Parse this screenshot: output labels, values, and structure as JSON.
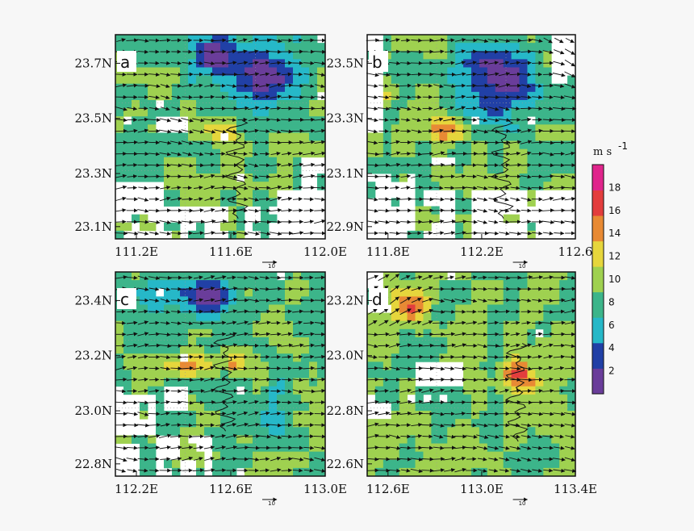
{
  "chart_data": {
    "type": "heatmap",
    "colorbar": {
      "unit": "m s",
      "unit_superscript": "-1",
      "ticks": [
        "2",
        "4",
        "6",
        "8",
        "10",
        "12",
        "14",
        "16",
        "18"
      ],
      "range": [
        0,
        20
      ],
      "colors": [
        "#6a3d9a",
        "#2140a6",
        "#26b8c8",
        "#3cb58a",
        "#9fd150",
        "#e6d63c",
        "#e88a34",
        "#e33d3d",
        "#e0258c"
      ]
    },
    "reference_vector_label": "10",
    "panels": [
      {
        "label": "a",
        "x_ticks": [
          "111.2E",
          "111.6E",
          "112.0E"
        ],
        "y_ticks": [
          "23.7N",
          "23.5N",
          "23.3N",
          "23.1N"
        ],
        "xlim": [
          111.1,
          112.0
        ],
        "ylim": [
          23.05,
          23.8
        ],
        "max_speed_region": "north-east",
        "wind_direction": "east"
      },
      {
        "label": "b",
        "x_ticks": [
          "111.8E",
          "112.2E",
          "112.6"
        ],
        "y_ticks": [
          "23.5N",
          "23.3N",
          "23.1N",
          "22.9N"
        ],
        "xlim": [
          111.7,
          112.6
        ],
        "ylim": [
          22.85,
          23.6
        ],
        "max_speed_region": "center",
        "wind_direction": "east"
      },
      {
        "label": "c",
        "x_ticks": [
          "112.2E",
          "112.6E",
          "113.0E"
        ],
        "y_ticks": [
          "23.4N",
          "23.2N",
          "23.0N",
          "22.8N"
        ],
        "xlim": [
          112.2,
          113.0
        ],
        "ylim": [
          22.75,
          23.5
        ],
        "max_speed_region": "center-west",
        "wind_direction": "east"
      },
      {
        "label": "d",
        "x_ticks": [
          "112.6E",
          "113.0E",
          "113.4E"
        ],
        "y_ticks": [
          "23.2N",
          "23.0N",
          "22.8N",
          "22.6N"
        ],
        "xlim": [
          112.6,
          113.4
        ],
        "ylim": [
          22.55,
          23.3
        ],
        "max_speed_region": "north-west",
        "wind_direction": "east"
      }
    ]
  }
}
